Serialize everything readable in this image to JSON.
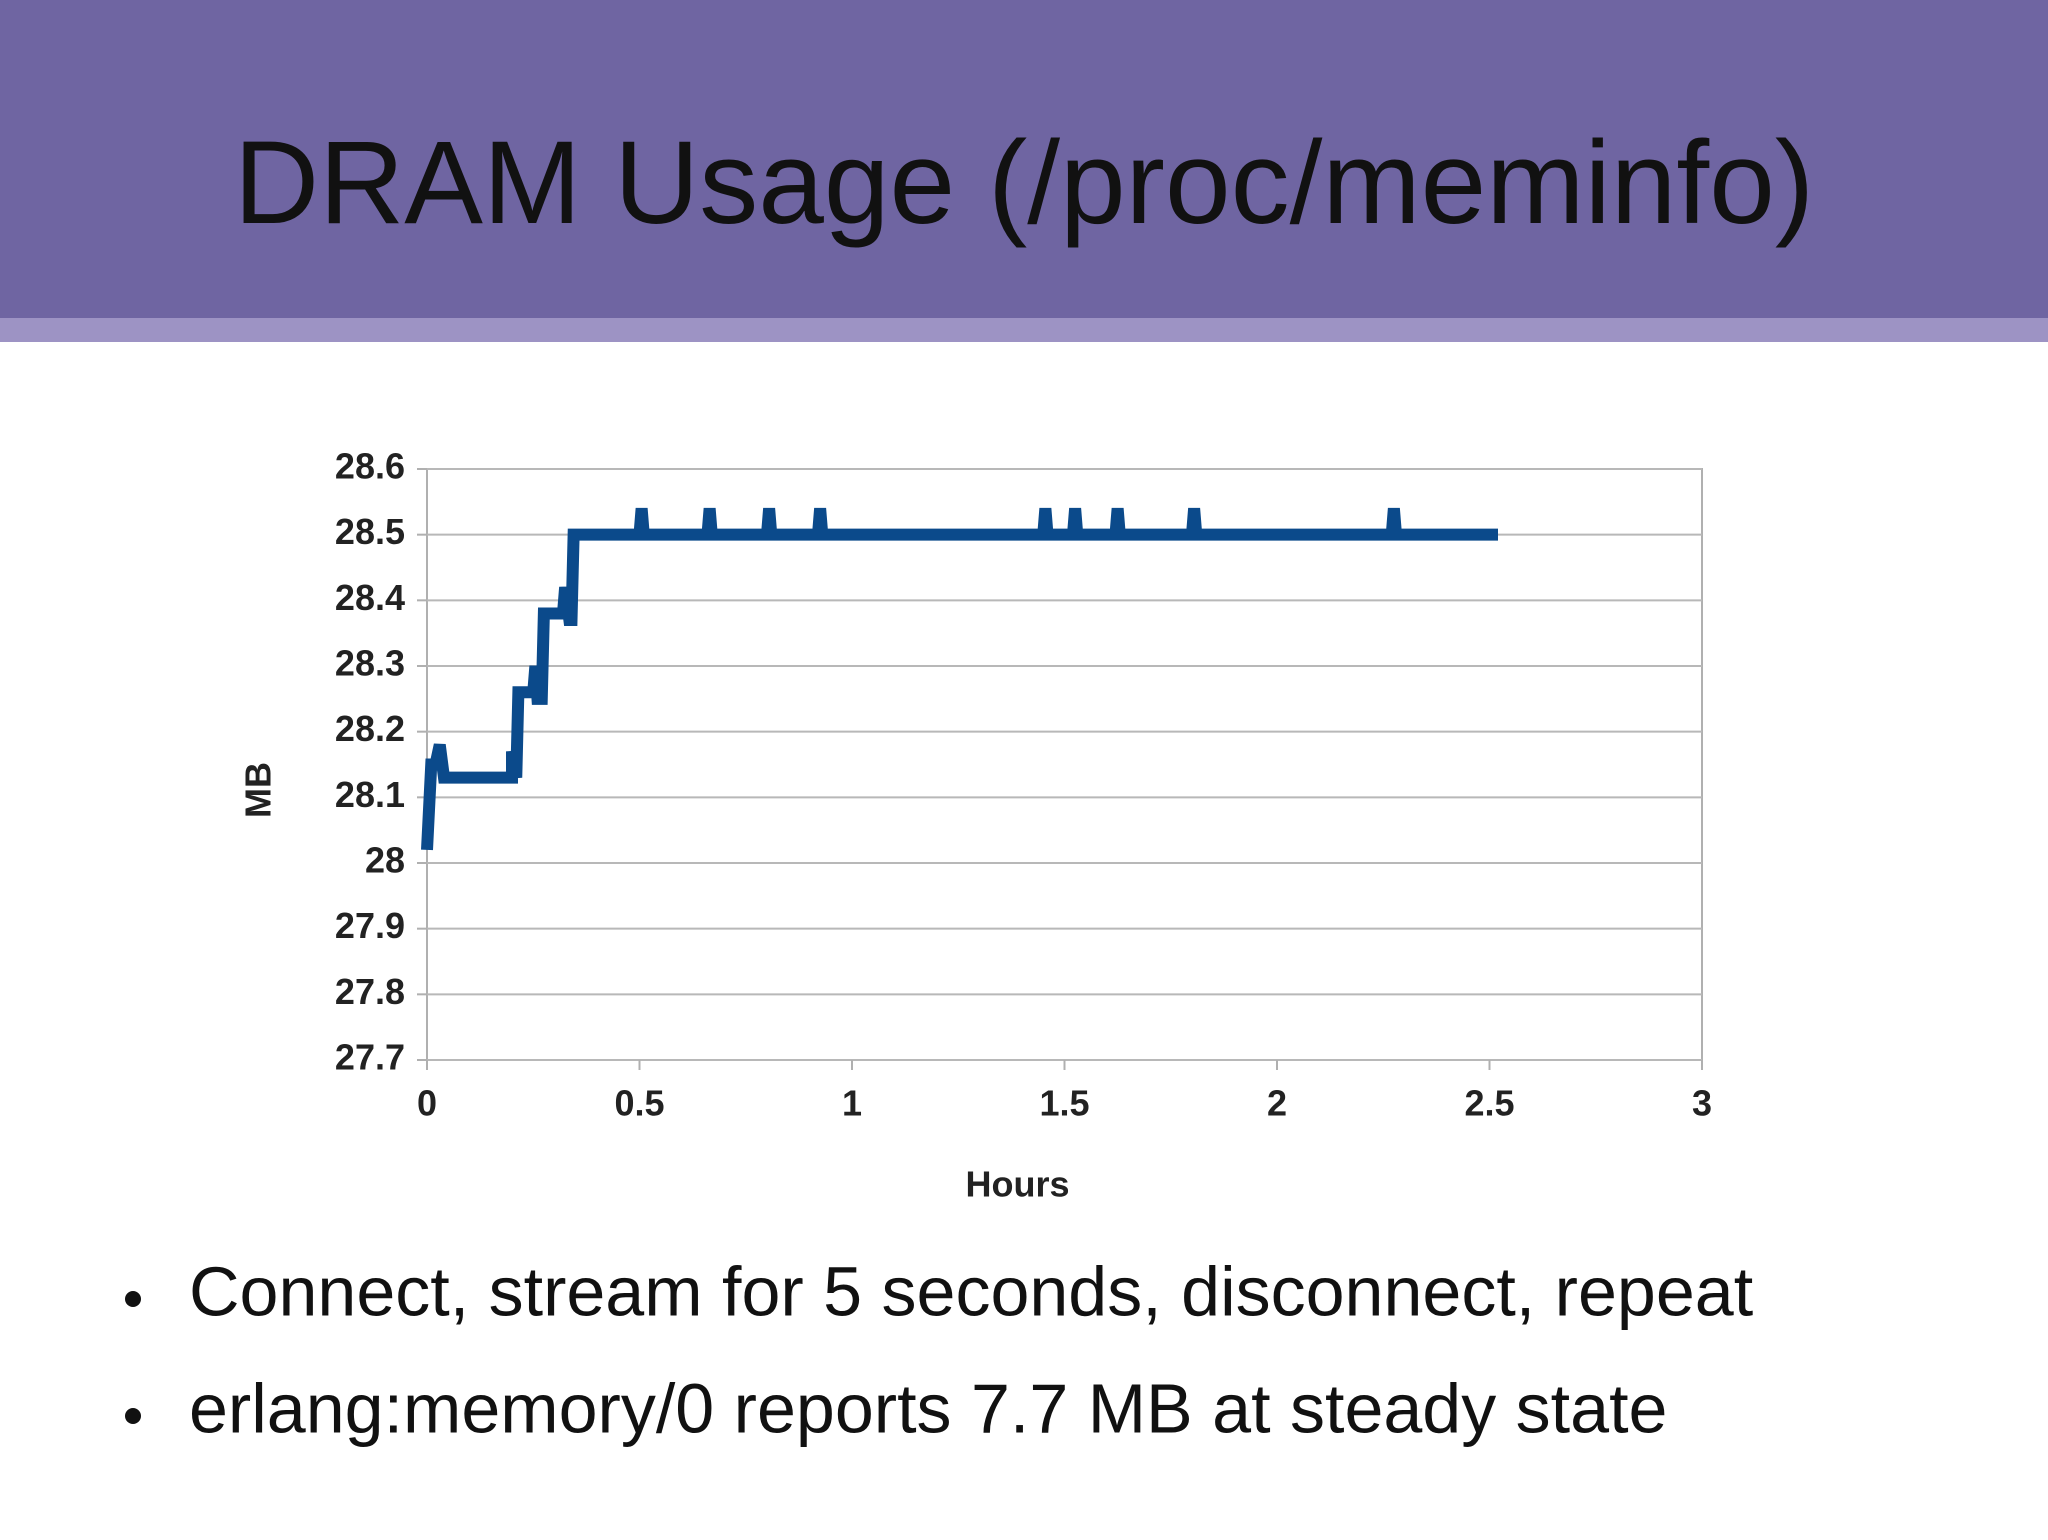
{
  "header": {
    "title": "DRAM Usage (/proc/meminfo)"
  },
  "chart_data": {
    "type": "line",
    "xlabel": "Hours",
    "ylabel": "MB",
    "xlim": [
      0,
      3
    ],
    "xticks": [
      0,
      0.5,
      1,
      1.5,
      2,
      2.5,
      3
    ],
    "ylim": [
      27.7,
      28.6
    ],
    "yticks": [
      27.7,
      27.8,
      27.9,
      28,
      28.1,
      28.2,
      28.3,
      28.4,
      28.5,
      28.6
    ],
    "grid": true,
    "series": [
      {
        "color": "#0b4a8b",
        "x": [
          0,
          0.01,
          0.02,
          0.03,
          0.04,
          0.2,
          0.2,
          0.21,
          0.215,
          0.25,
          0.255,
          0.26,
          0.27,
          0.275,
          0.32,
          0.325,
          0.335,
          0.34,
          0.345,
          0.5,
          0.505,
          0.51,
          0.66,
          0.665,
          0.67,
          0.8,
          0.805,
          0.81,
          0.92,
          0.925,
          0.93,
          1.45,
          1.455,
          1.46,
          1.52,
          1.525,
          1.53,
          1.62,
          1.625,
          1.63,
          1.8,
          1.805,
          1.81,
          2.27,
          2.275,
          2.28,
          2.52
        ],
        "values": [
          28.02,
          28.15,
          28.15,
          28.18,
          28.13,
          28.13,
          28.17,
          28.13,
          28.26,
          28.26,
          28.3,
          28.25,
          28.25,
          28.38,
          28.38,
          28.42,
          28.37,
          28.37,
          28.5,
          28.5,
          28.54,
          28.5,
          28.5,
          28.54,
          28.5,
          28.5,
          28.54,
          28.5,
          28.5,
          28.54,
          28.5,
          28.5,
          28.54,
          28.5,
          28.5,
          28.54,
          28.5,
          28.5,
          28.54,
          28.5,
          28.5,
          28.54,
          28.5,
          28.5,
          28.54,
          28.5,
          28.5
        ]
      }
    ]
  },
  "bullets": [
    "Connect, stream for 5 seconds, disconnect, repeat",
    "erlang:memory/0 reports 7.7 MB at steady state"
  ]
}
